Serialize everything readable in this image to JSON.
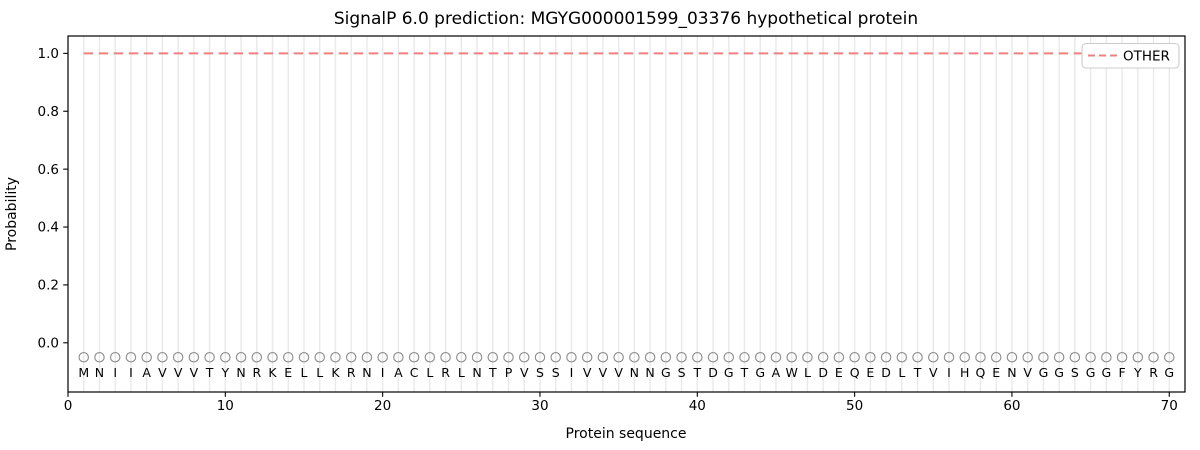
{
  "chart_data": {
    "type": "line",
    "title": "SignalP 6.0 prediction: MGYG000001599_03376 hypothetical protein",
    "xlabel": "Protein sequence",
    "ylabel": "Probability",
    "xlim": [
      0,
      71
    ],
    "ylim": [
      -0.17,
      1.06
    ],
    "xticks": [
      0,
      10,
      20,
      30,
      40,
      50,
      60,
      70
    ],
    "yticks": [
      0.0,
      0.2,
      0.4,
      0.6,
      0.8,
      1.0
    ],
    "grid": "light vertical gridline at every residue position 1-70",
    "legend": {
      "position": "upper right",
      "entries": [
        "OTHER"
      ]
    },
    "sequence": "MNIIAVVVTYNRKELLKRNIACLRLNTPVSSIVVVNNGSTDGTGAWLDEQEDLTVIHQENVGGSGGFYRG",
    "sequence_length": 70,
    "series": [
      {
        "name": "OTHER",
        "line_style": "dashed",
        "color": "#f08080",
        "x_start": 1,
        "x_end": 70,
        "y_constant": 1.0
      }
    ],
    "residue_markers": {
      "symbol": "open-circle",
      "color": "#8f8f8f",
      "y": -0.05,
      "per_residue": true
    },
    "colors": {
      "background": "#ffffff",
      "gridline": "#e9e9e9",
      "axis": "#000000",
      "text": "#000000",
      "other_line": "#f08080",
      "marker": "#8f8f8f",
      "legend_border": "#cccccc",
      "legend_background": "#ffffff"
    }
  }
}
